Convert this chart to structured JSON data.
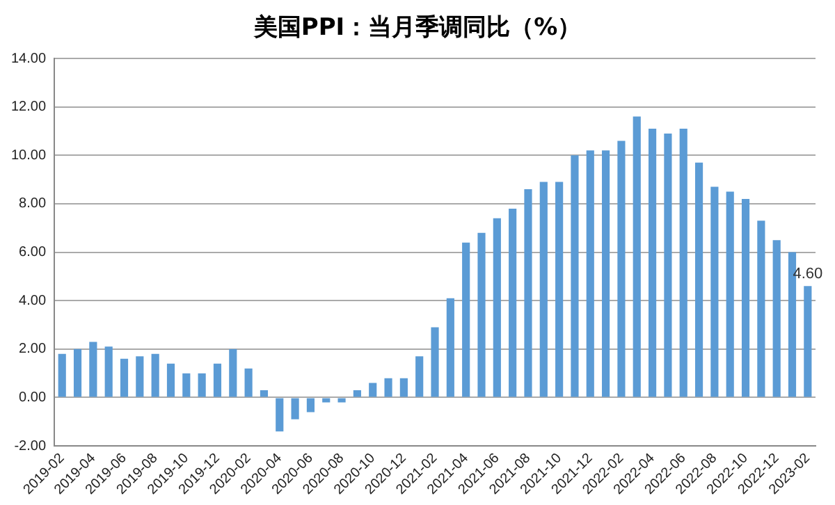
{
  "chart_data": {
    "type": "bar",
    "title": "美国PPI：当月季调同比（%）",
    "categories": [
      "2019-02",
      null,
      "2019-04",
      null,
      "2019-06",
      null,
      "2019-08",
      null,
      "2019-10",
      null,
      "2019-12",
      null,
      "2020-02",
      null,
      "2020-04",
      null,
      "2020-06",
      null,
      "2020-08",
      null,
      "2020-10",
      null,
      "2020-12",
      null,
      "2021-02",
      null,
      "2021-04",
      null,
      "2021-06",
      null,
      "2021-08",
      null,
      "2021-10",
      null,
      "2021-12",
      null,
      "2022-02",
      null,
      "2022-04",
      null,
      "2022-06",
      null,
      "2022-08",
      null,
      "2022-10",
      null,
      "2022-12",
      null,
      "2023-02"
    ],
    "values": [
      1.8,
      2.0,
      2.3,
      2.1,
      1.6,
      1.7,
      1.8,
      1.4,
      1.0,
      1.0,
      1.4,
      2.0,
      1.2,
      0.3,
      -1.4,
      -0.9,
      -0.6,
      -0.2,
      -0.2,
      0.3,
      0.6,
      0.8,
      0.8,
      1.7,
      2.9,
      4.1,
      6.4,
      6.8,
      7.4,
      7.8,
      8.6,
      8.9,
      8.9,
      10.0,
      10.2,
      10.2,
      10.6,
      11.6,
      11.1,
      10.9,
      11.1,
      9.7,
      8.7,
      8.5,
      8.2,
      7.3,
      6.5,
      6.0,
      4.6
    ],
    "value_labels": [
      null,
      null,
      null,
      null,
      null,
      null,
      null,
      null,
      null,
      null,
      null,
      null,
      null,
      null,
      null,
      null,
      null,
      null,
      null,
      null,
      null,
      null,
      null,
      null,
      null,
      null,
      null,
      null,
      null,
      null,
      null,
      null,
      null,
      null,
      null,
      null,
      null,
      null,
      null,
      null,
      null,
      null,
      null,
      null,
      null,
      null,
      null,
      null,
      "4.60"
    ],
    "color": "#5b9bd5",
    "ylim": [
      -2,
      14
    ],
    "yticks": [
      {
        "value": -2,
        "label": "-2.00"
      },
      {
        "value": 0,
        "label": "0.00"
      },
      {
        "value": 2,
        "label": "2.00"
      },
      {
        "value": 4,
        "label": "4.00"
      },
      {
        "value": 6,
        "label": "6.00"
      },
      {
        "value": 8,
        "label": "8.00"
      },
      {
        "value": 10,
        "label": "10.00"
      },
      {
        "value": 12,
        "label": "12.00"
      },
      {
        "value": 14,
        "label": "14.00"
      }
    ],
    "grid": "y"
  }
}
